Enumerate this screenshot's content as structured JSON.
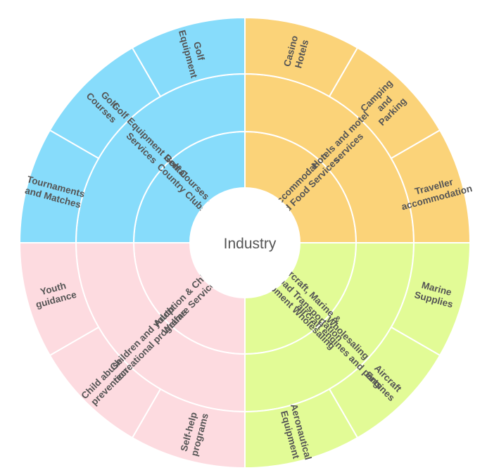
{
  "center": {
    "label": "Industry"
  },
  "colors": {
    "blue": "#87dcfb",
    "orange": "#fbd379",
    "green": "#e2fb96",
    "pink": "#fddbe0"
  },
  "quadrants": [
    {
      "color": "#87dcfb",
      "ring1": {
        "lines": [
          "Golf Courses &",
          "Country Clubs"
        ]
      },
      "ring2": {
        "lines": [
          "Golf Equipment Rental",
          "Services"
        ]
      },
      "ring3": [
        {
          "lines": [
            "Tournaments",
            "and Matches"
          ]
        },
        {
          "lines": [
            "Golf",
            "Courses"
          ]
        },
        {
          "lines": [
            "Golf",
            "Equipment"
          ]
        }
      ]
    },
    {
      "color": "#fbd379",
      "ring1": {
        "lines": [
          "Accommodation",
          "and Food Services"
        ]
      },
      "ring2": {
        "lines": [
          "Hotels and motel",
          "services"
        ]
      },
      "ring3": [
        {
          "lines": [
            "Casino",
            "Hotels"
          ]
        },
        {
          "lines": [
            "Camping",
            "and",
            "Parking"
          ]
        },
        {
          "lines": [
            "Traveller",
            "accommodation"
          ]
        }
      ]
    },
    {
      "color": "#e2fb96",
      "ring1": {
        "lines": [
          "Aircraft, Marine &",
          "Railroad Transportation",
          "Equipment Wholesaling"
        ]
      },
      "ring2": {
        "lines": [
          "Wholesaling",
          "aircraft engines and parts"
        ]
      },
      "ring3": [
        {
          "lines": [
            "Marine",
            "Supplies"
          ]
        },
        {
          "lines": [
            "Aircraft",
            "Engines"
          ]
        },
        {
          "lines": [
            "Aeronautical",
            "Equipment"
          ]
        }
      ]
    },
    {
      "color": "#fddbe0",
      "ring1": {
        "lines": [
          "Adoption & Child",
          "Welfare Services"
        ]
      },
      "ring2": {
        "lines": [
          "Children and youth",
          "recreational programs"
        ]
      },
      "ring3": [
        {
          "lines": [
            "Self-help",
            "programs"
          ]
        },
        {
          "lines": [
            "Child abuse",
            "prevention"
          ]
        },
        {
          "lines": [
            "Youth",
            "guidance"
          ]
        }
      ]
    }
  ]
}
